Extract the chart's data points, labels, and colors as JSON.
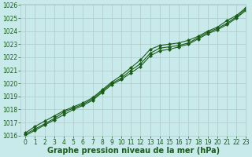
{
  "xlabel": "Graphe pression niveau de la mer (hPa)",
  "ylim": [
    1016,
    1026
  ],
  "xlim": [
    -0.5,
    23
  ],
  "yticks": [
    1016,
    1017,
    1018,
    1019,
    1020,
    1021,
    1022,
    1023,
    1024,
    1025,
    1026
  ],
  "xticks": [
    0,
    1,
    2,
    3,
    4,
    5,
    6,
    7,
    8,
    9,
    10,
    11,
    12,
    13,
    14,
    15,
    16,
    17,
    18,
    19,
    20,
    21,
    22,
    23
  ],
  "background_color": "#c8eaea",
  "grid_color": "#b0c8c8",
  "line_color": "#1a5c1a",
  "line1": [
    1016.2,
    1016.7,
    1017.1,
    1017.5,
    1017.9,
    1018.2,
    1018.5,
    1018.9,
    1019.5,
    1020.1,
    1020.6,
    1021.2,
    1021.8,
    1022.6,
    1022.9,
    1023.0,
    1023.1,
    1023.3,
    1023.6,
    1024.0,
    1024.3,
    1024.8,
    1025.2,
    1025.8
  ],
  "line2": [
    1016.1,
    1016.5,
    1016.9,
    1017.3,
    1017.8,
    1018.1,
    1018.4,
    1018.8,
    1019.4,
    1020.0,
    1020.4,
    1021.0,
    1021.5,
    1022.3,
    1022.7,
    1022.8,
    1022.9,
    1023.1,
    1023.5,
    1023.9,
    1024.2,
    1024.6,
    1025.1,
    1025.7
  ],
  "line3": [
    1016.0,
    1016.4,
    1016.8,
    1017.2,
    1017.6,
    1018.0,
    1018.3,
    1018.7,
    1019.3,
    1019.9,
    1020.3,
    1020.8,
    1021.3,
    1022.1,
    1022.5,
    1022.6,
    1022.8,
    1023.0,
    1023.4,
    1023.8,
    1024.1,
    1024.5,
    1025.0,
    1025.6
  ],
  "marker": "D",
  "marker_size": 2.0,
  "linewidth": 0.8,
  "xlabel_fontsize": 7,
  "xlabel_fontweight": "bold",
  "tick_fontsize": 5.5
}
